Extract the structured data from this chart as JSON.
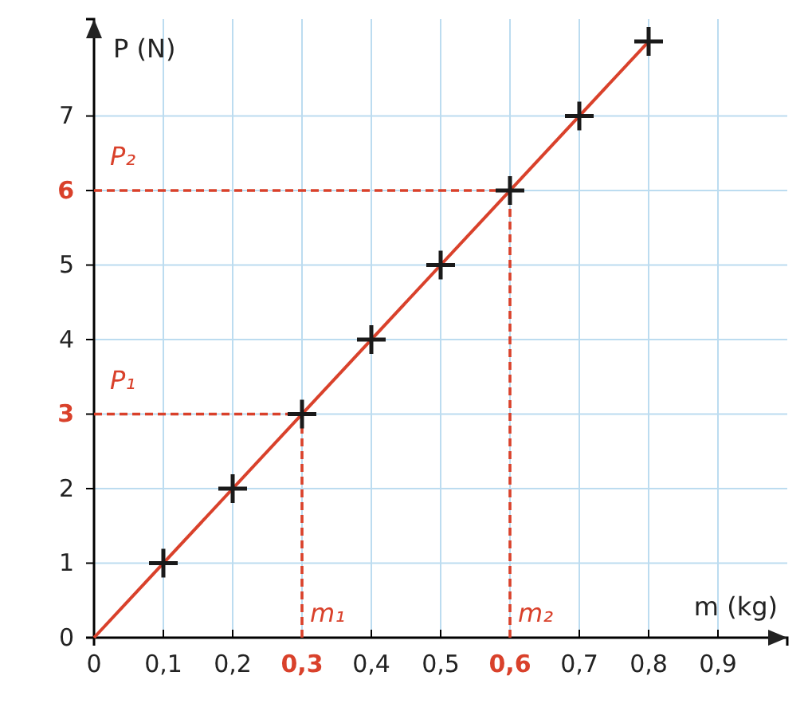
{
  "chart_data": {
    "type": "scatter",
    "xlabel": "m (kg)",
    "ylabel": "P (N)",
    "xlim": [
      0,
      1.0
    ],
    "ylim": [
      0,
      8.3
    ],
    "xticks": [
      0,
      {
        "value": 0.1,
        "label": "0,1"
      },
      {
        "value": 0.2,
        "label": "0,2"
      },
      {
        "value": 0.3,
        "label": "0,3"
      },
      {
        "value": 0.4,
        "label": "0,4"
      },
      {
        "value": 0.5,
        "label": "0,5"
      },
      {
        "value": 0.6,
        "label": "0,6"
      },
      {
        "value": 0.7,
        "label": "0,7"
      },
      {
        "value": 0.8,
        "label": "0,8"
      },
      {
        "value": 0.9,
        "label": "0,9"
      }
    ],
    "yticks": [
      0,
      1,
      2,
      3,
      4,
      5,
      6,
      7
    ],
    "grid": true,
    "series": [
      {
        "type": "line",
        "color": "#d9412b",
        "x": [
          0,
          0.8
        ],
        "values": [
          0,
          8
        ],
        "marker": "none",
        "line_style": "solid"
      },
      {
        "color": "#1a1a1a",
        "x": [
          0.1,
          0.2,
          0.3,
          0.4,
          0.5,
          0.6,
          0.7,
          0.8
        ],
        "values": [
          1,
          2,
          3,
          4,
          5,
          6,
          7,
          8
        ],
        "marker": "cross"
      }
    ],
    "ref_lines": [
      {
        "axis": "y",
        "value": 3,
        "label": "P₁",
        "color": "#d9412b",
        "line_style": "dashed"
      },
      {
        "axis": "y",
        "value": 6,
        "label": "P₂",
        "color": "#d9412b",
        "line_style": "dashed"
      },
      {
        "axis": "x",
        "value": 0.3,
        "label": "m₁",
        "color": "#d9412b",
        "line_style": "dashed"
      },
      {
        "axis": "x",
        "value": 0.6,
        "label": "m₂",
        "color": "#d9412b",
        "line_style": "dashed"
      }
    ]
  }
}
